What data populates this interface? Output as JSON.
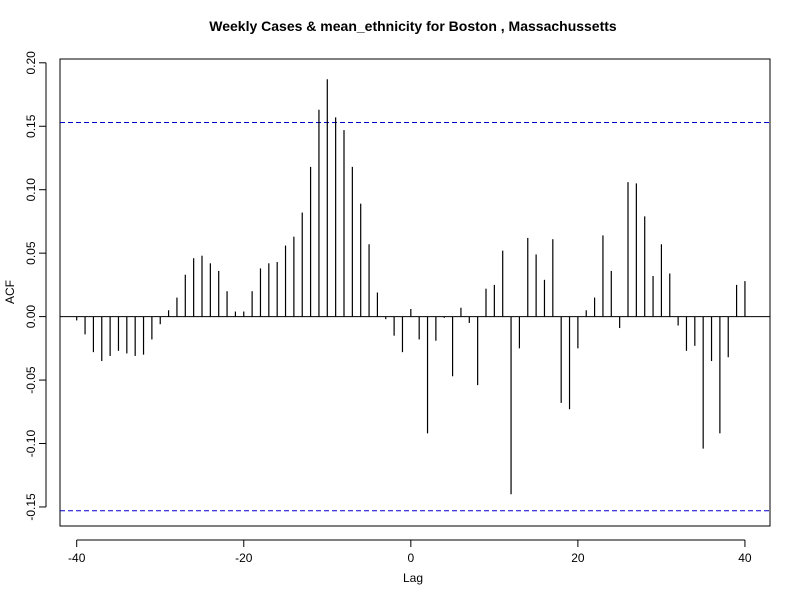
{
  "chart_data": {
    "type": "bar",
    "title": "Weekly Cases & mean_ethnicity for Boston , Massachussetts",
    "xlabel": "Lag",
    "ylabel": "ACF",
    "xlim": [
      -42,
      43
    ],
    "ylim": [
      -0.165,
      0.203
    ],
    "x_ticks": [
      -40,
      -20,
      0,
      20,
      40
    ],
    "y_ticks": [
      -0.15,
      -0.1,
      -0.05,
      0.0,
      0.05,
      0.1,
      0.15,
      0.2
    ],
    "x_tick_labels": [
      "-40",
      "-20",
      "0",
      "20",
      "40"
    ],
    "y_tick_labels": [
      "-0.15",
      "-0.10",
      "-0.05",
      "0.00",
      "0.05",
      "0.10",
      "0.15",
      "0.20"
    ],
    "confidence_bounds": [
      0.153,
      -0.153
    ],
    "confidence_color": "#0000cc",
    "lags": [
      -40,
      -39,
      -38,
      -37,
      -36,
      -35,
      -34,
      -33,
      -32,
      -31,
      -30,
      -29,
      -28,
      -27,
      -26,
      -25,
      -24,
      -23,
      -22,
      -21,
      -20,
      -19,
      -18,
      -17,
      -16,
      -15,
      -14,
      -13,
      -12,
      -11,
      -10,
      -9,
      -8,
      -7,
      -6,
      -5,
      -4,
      -3,
      -2,
      -1,
      0,
      1,
      2,
      3,
      4,
      5,
      6,
      7,
      8,
      9,
      10,
      11,
      12,
      13,
      14,
      15,
      16,
      17,
      18,
      19,
      20,
      21,
      22,
      23,
      24,
      25,
      26,
      27,
      28,
      29,
      30,
      31,
      32,
      33,
      34,
      35,
      36,
      37,
      38,
      39,
      40
    ],
    "values": [
      -0.003,
      -0.014,
      -0.028,
      -0.035,
      -0.031,
      -0.027,
      -0.029,
      -0.031,
      -0.03,
      -0.018,
      -0.006,
      0.005,
      0.015,
      0.033,
      0.046,
      0.048,
      0.042,
      0.036,
      0.02,
      0.004,
      0.004,
      0.02,
      0.038,
      0.042,
      0.043,
      0.056,
      0.063,
      0.082,
      0.118,
      0.163,
      0.187,
      0.157,
      0.147,
      0.118,
      0.089,
      0.057,
      0.019,
      -0.002,
      -0.015,
      -0.028,
      0.006,
      -0.018,
      -0.092,
      -0.019,
      -0.001,
      -0.047,
      0.007,
      -0.005,
      -0.054,
      0.022,
      0.025,
      0.052,
      -0.14,
      -0.025,
      0.062,
      0.049,
      0.029,
      0.061,
      -0.068,
      -0.073,
      -0.025,
      0.005,
      0.015,
      0.064,
      0.036,
      -0.009,
      0.106,
      0.105,
      0.079,
      0.032,
      0.057,
      0.034,
      -0.007,
      -0.027,
      -0.023,
      -0.104,
      -0.035,
      -0.092,
      -0.032,
      0.025,
      0.028
    ],
    "grid": false,
    "legend": "none"
  }
}
